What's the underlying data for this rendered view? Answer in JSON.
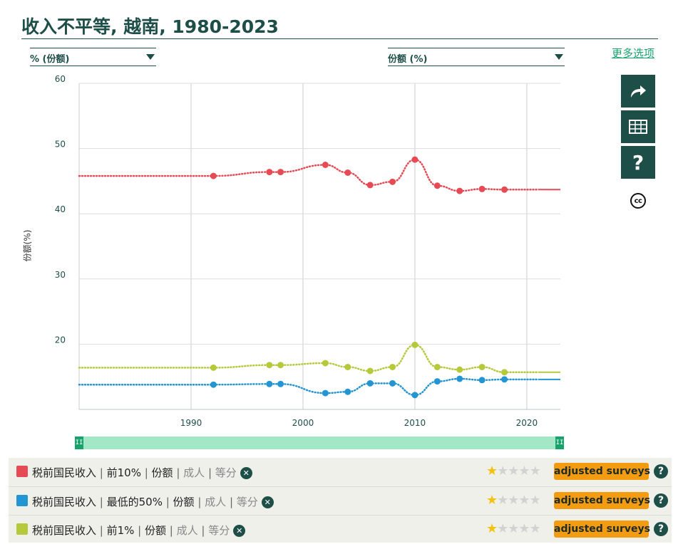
{
  "title": "收入不平等, 越南, 1980-2023",
  "controls": {
    "left_select": "% (份额)",
    "right_select": "份额 (%)",
    "more_options": "更多选项"
  },
  "side_buttons": [
    {
      "name": "share-icon",
      "glyph": "➦"
    },
    {
      "name": "table-icon",
      "glyph": "▦"
    },
    {
      "name": "help-icon",
      "glyph": "?"
    }
  ],
  "license_label": "cc",
  "chart_data": {
    "type": "line",
    "title": "收入不平等, 越南, 1980-2023",
    "xlabel": "",
    "ylabel": "份额(%)",
    "xlim": [
      1980,
      2023
    ],
    "ylim": [
      10,
      60
    ],
    "x_ticks": [
      "1990",
      "2000",
      "2010",
      "2020"
    ],
    "y_ticks": [
      "20",
      "30",
      "40",
      "50",
      "60"
    ],
    "grid": true,
    "series": [
      {
        "name": "税前国民收入 | 前10% | 份额 | 成人 | 等分",
        "color": "#e64b55",
        "x": [
          1992,
          1997,
          1998,
          2002,
          2004,
          2006,
          2008,
          2010,
          2012,
          2014,
          2016,
          2018
        ],
        "y": [
          45.8,
          46.4,
          46.4,
          47.5,
          46.3,
          44.4,
          44.9,
          48.3,
          44.3,
          43.5,
          43.8,
          43.7
        ],
        "extend_start": 45.8,
        "extend_end": 43.7
      },
      {
        "name": "税前国民收入 | 最低的50% | 份额 | 成人 | 等分",
        "color": "#2495d3",
        "x": [
          1992,
          1997,
          1998,
          2002,
          2004,
          2006,
          2008,
          2010,
          2012,
          2014,
          2016,
          2018
        ],
        "y": [
          13.8,
          13.9,
          13.9,
          12.5,
          12.7,
          14.0,
          14.0,
          12.2,
          14.3,
          14.7,
          14.5,
          14.6
        ],
        "extend_start": 13.8,
        "extend_end": 14.6
      },
      {
        "name": "税前国民收入 | 前1% | 份额 | 成人 | 等分",
        "color": "#b5c93b",
        "x": [
          1992,
          1997,
          1998,
          2002,
          2004,
          2006,
          2008,
          2010,
          2012,
          2014,
          2016,
          2018
        ],
        "y": [
          16.4,
          16.8,
          16.8,
          17.1,
          16.5,
          15.9,
          16.5,
          19.9,
          16.5,
          16.1,
          16.5,
          15.7
        ],
        "extend_start": 16.4,
        "extend_end": 15.7
      }
    ]
  },
  "legend": {
    "rows": [
      {
        "color": "#e64b55",
        "indicator": "税前国民收入",
        "group": "前10%",
        "metric": "份额",
        "population": "成人",
        "unit": "等分",
        "rating": 1,
        "rating_max": 5,
        "badge": "adjusted surveys"
      },
      {
        "color": "#2495d3",
        "indicator": "税前国民收入",
        "group": "最低的50%",
        "metric": "份额",
        "population": "成人",
        "unit": "等分",
        "rating": 1,
        "rating_max": 5,
        "badge": "adjusted surveys"
      },
      {
        "color": "#b5c93b",
        "indicator": "税前国民收入",
        "group": "前1%",
        "metric": "份额",
        "population": "成人",
        "unit": "等分",
        "rating": 1,
        "rating_max": 5,
        "badge": "adjusted surveys"
      }
    ],
    "remove_glyph": "✕",
    "help_glyph": "?",
    "star_glyph": "★"
  },
  "slider": {
    "handle_glyph": "II"
  }
}
